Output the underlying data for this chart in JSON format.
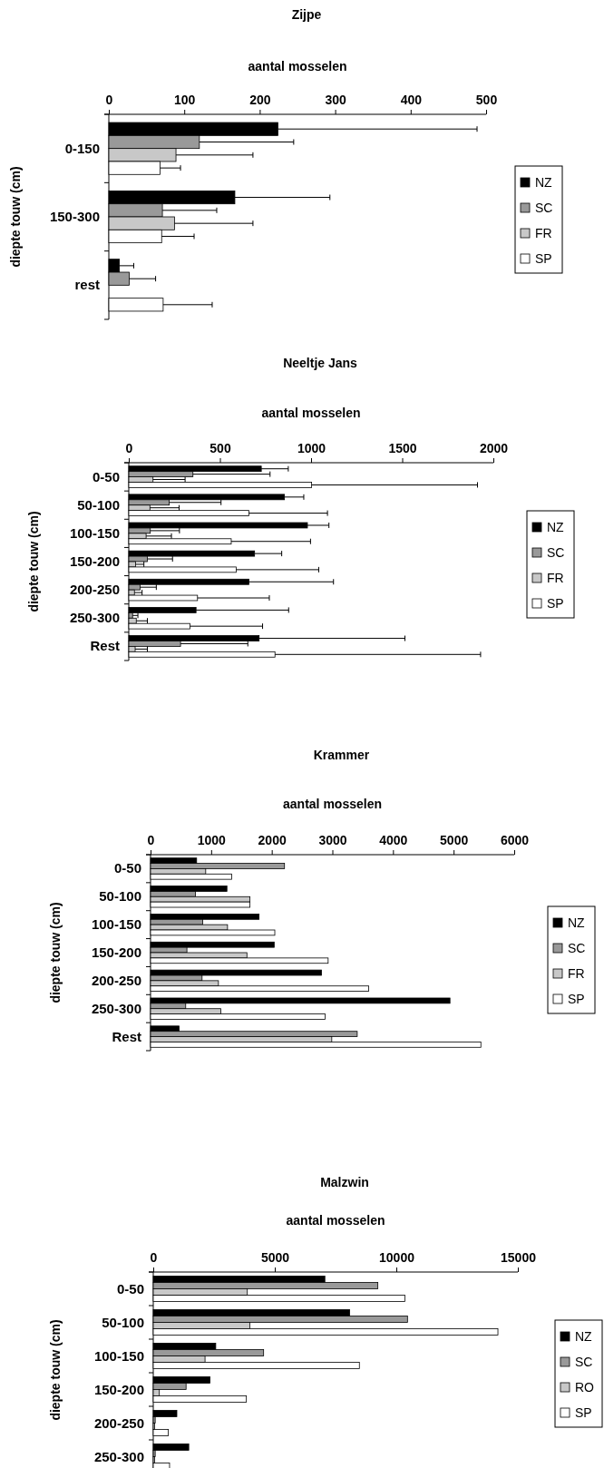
{
  "chart_data": [
    {
      "type": "bar",
      "orientation": "horizontal",
      "title": "Zijpe",
      "xlabel": "aantal mosselen",
      "ylabel": "diepte touw (cm)",
      "categories": [
        "0-150",
        "150-300",
        "rest"
      ],
      "xlim": [
        0,
        500
      ],
      "xticks": [
        0,
        100,
        200,
        300,
        400,
        500
      ],
      "legend": "right",
      "grid": false,
      "series": [
        {
          "name": "NZ",
          "color": "#000000",
          "values": [
            224,
            167,
            14
          ],
          "errors": [
            [
              224,
              488
            ],
            [
              167,
              293
            ],
            [
              14,
              33
            ]
          ]
        },
        {
          "name": "SC",
          "color": "#999999",
          "values": [
            120,
            71,
            27
          ],
          "errors": [
            [
              120,
              245
            ],
            [
              71,
              143
            ],
            [
              27,
              62
            ]
          ]
        },
        {
          "name": "FR",
          "color": "#c8c8c8",
          "values": [
            89,
            87,
            0
          ],
          "errors": [
            [
              89,
              191
            ],
            [
              87,
              191
            ],
            null
          ]
        },
        {
          "name": "SP",
          "color": "#ffffff",
          "values": [
            68,
            70,
            72
          ],
          "errors": [
            [
              68,
              95
            ],
            [
              70,
              113
            ],
            [
              72,
              137
            ]
          ]
        }
      ]
    },
    {
      "type": "bar",
      "orientation": "horizontal",
      "title": "Neeltje Jans",
      "xlabel": "aantal mosselen",
      "ylabel": "diepte touw (cm)",
      "categories": [
        "0-50",
        "50-100",
        "100-150",
        "150-200",
        "200-250",
        "250-300",
        "Rest"
      ],
      "xlim": [
        0,
        2000
      ],
      "xticks": [
        0,
        500,
        1000,
        1500,
        2000
      ],
      "legend": "right",
      "grid": false,
      "series": [
        {
          "name": "NZ",
          "color": "#000000",
          "values": [
            727,
            854,
            980,
            690,
            659,
            369,
            715
          ],
          "errors": [
            [
              727,
              875
            ],
            [
              854,
              960
            ],
            [
              980,
              1098
            ],
            [
              690,
              839
            ],
            [
              659,
              1123
            ],
            [
              369,
              877
            ],
            [
              715,
              1515
            ]
          ]
        },
        {
          "name": "SC",
          "color": "#999999",
          "values": [
            352,
            222,
            118,
            102,
            62,
            21,
            284
          ],
          "errors": [
            [
              352,
              775
            ],
            [
              222,
              506
            ],
            [
              118,
              278
            ],
            [
              102,
              240
            ],
            [
              62,
              151
            ],
            [
              21,
              50
            ],
            [
              284,
              653
            ]
          ]
        },
        {
          "name": "FR",
          "color": "#c8c8c8",
          "values": [
            133,
            116,
            95,
            37,
            31,
            41,
            35
          ],
          "errors": [
            [
              133,
              309
            ],
            [
              116,
              276
            ],
            [
              95,
              234
            ],
            [
              37,
              83
            ],
            [
              31,
              73
            ],
            [
              41,
              102
            ],
            [
              35,
              102
            ]
          ]
        },
        {
          "name": "SP",
          "color": "#ffffff",
          "values": [
            1003,
            659,
            562,
            589,
            377,
            336,
            802
          ],
          "errors": [
            [
              1003,
              1913
            ],
            [
              659,
              1090
            ],
            [
              562,
              997
            ],
            [
              589,
              1042
            ],
            [
              377,
              771
            ],
            [
              336,
              734
            ],
            [
              802,
              1930
            ]
          ]
        }
      ]
    },
    {
      "type": "bar",
      "orientation": "horizontal",
      "title": "Krammer",
      "xlabel": "aantal mosselen",
      "ylabel": "diepte touw (cm)",
      "categories": [
        "0-50",
        "50-100",
        "100-150",
        "150-200",
        "200-250",
        "250-300",
        "Rest"
      ],
      "xlim": [
        0,
        6000
      ],
      "xticks": [
        0,
        1000,
        2000,
        3000,
        4000,
        5000,
        6000
      ],
      "legend": "right",
      "grid": false,
      "series": [
        {
          "name": "NZ",
          "color": "#000000",
          "values": [
            760,
            1260,
            1790,
            2040,
            2820,
            4940,
            470
          ]
        },
        {
          "name": "SC",
          "color": "#999999",
          "values": [
            2210,
            740,
            860,
            600,
            850,
            580,
            3410
          ]
        },
        {
          "name": "FR",
          "color": "#c8c8c8",
          "values": [
            910,
            1640,
            1270,
            1590,
            1120,
            1160,
            2990
          ]
        },
        {
          "name": "SP",
          "color": "#ffffff",
          "values": [
            1340,
            1640,
            2050,
            2930,
            3600,
            2880,
            5450
          ]
        }
      ]
    },
    {
      "type": "bar",
      "orientation": "horizontal",
      "title": "Malzwin",
      "xlabel": "aantal mosselen",
      "ylabel": "diepte touw (cm)",
      "categories": [
        "0-50",
        "50-100",
        "100-150",
        "150-200",
        "200-250",
        "250-300"
      ],
      "xlim": [
        0,
        15000
      ],
      "xticks": [
        0,
        5000,
        10000,
        15000
      ],
      "legend": "right",
      "grid": false,
      "series": [
        {
          "name": "NZ",
          "color": "#000000",
          "values": [
            7060,
            8080,
            2570,
            2330,
            970,
            1460
          ]
        },
        {
          "name": "SC",
          "color": "#999999",
          "values": [
            9240,
            10460,
            4540,
            1350,
            80,
            80
          ]
        },
        {
          "name": "RO",
          "color": "#c8c8c8",
          "values": [
            3870,
            3970,
            2130,
            250,
            60,
            60
          ]
        },
        {
          "name": "SP",
          "color": "#ffffff",
          "values": [
            10350,
            14180,
            8480,
            3830,
            620,
            670
          ]
        }
      ]
    }
  ]
}
